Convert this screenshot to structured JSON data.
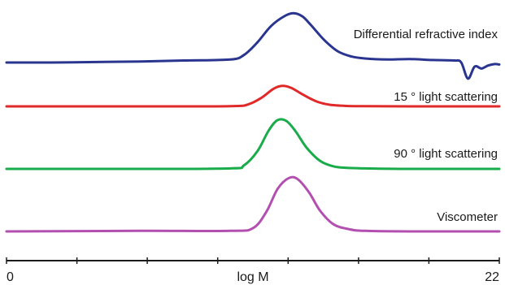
{
  "chart_data": {
    "type": "line",
    "xlabel": "log M",
    "xlim": [
      0,
      22
    ],
    "x_tick_labels": [
      "0",
      "log M",
      "22"
    ],
    "grid": false,
    "series": [
      {
        "name": "Differential refractive index",
        "color": "#2a3590",
        "x": [
          0,
          2,
          4,
          6,
          8,
          10,
          10.6,
          11.2,
          11.8,
          12.4,
          12.8,
          13.2,
          13.6,
          14.2,
          14.8,
          15.4,
          16,
          17,
          18,
          19,
          20,
          20.3,
          20.6,
          20.9,
          21.2,
          21.5,
          21.8,
          22
        ],
        "y": [
          0,
          0,
          0.01,
          0.02,
          0.04,
          0.06,
          0.15,
          0.4,
          0.72,
          0.92,
          0.98,
          0.92,
          0.74,
          0.44,
          0.22,
          0.12,
          0.08,
          0.06,
          0.07,
          0.05,
          0.04,
          0.0,
          -0.32,
          -0.08,
          -0.12,
          -0.06,
          -0.03,
          -0.04
        ]
      },
      {
        "name": "15 ° light scattering",
        "color": "#e02a2a",
        "x": [
          0,
          6,
          10,
          10.8,
          11.4,
          11.9,
          12.3,
          12.7,
          13.2,
          13.8,
          14.4,
          15.2,
          16,
          18,
          22
        ],
        "y": [
          0,
          0,
          0.01,
          0.1,
          0.42,
          0.82,
          0.97,
          0.88,
          0.58,
          0.25,
          0.08,
          0.02,
          0.01,
          0,
          0
        ]
      },
      {
        "name": "90 ° light scattering",
        "color": "#1aab4b",
        "x": [
          0,
          6,
          10,
          10.6,
          11.2,
          11.7,
          12.1,
          12.5,
          12.9,
          13.4,
          14,
          14.6,
          15.2,
          16,
          18,
          22
        ],
        "y": [
          0,
          0,
          0.01,
          0.07,
          0.35,
          0.76,
          0.97,
          0.95,
          0.75,
          0.42,
          0.16,
          0.05,
          0.02,
          0.01,
          0,
          0
        ]
      },
      {
        "name": "Viscometer",
        "color": "#b24fb0",
        "x": [
          0,
          6,
          10,
          11,
          11.6,
          12.1,
          12.6,
          13.0,
          13.5,
          14.0,
          14.6,
          15.3,
          16,
          18,
          22
        ],
        "y": [
          0,
          0.01,
          0.01,
          0.06,
          0.36,
          0.78,
          0.98,
          0.96,
          0.72,
          0.38,
          0.13,
          0.04,
          0.01,
          0,
          0
        ]
      }
    ]
  }
}
